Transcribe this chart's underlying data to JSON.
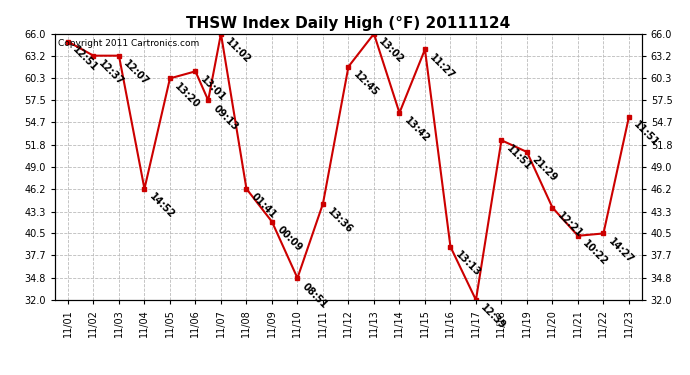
{
  "title": "THSW Index Daily High (°F) 20111124",
  "copyright": "Copyright 2011 Cartronics.com",
  "x_ticks": [
    "11/01",
    "11/02",
    "11/03",
    "11/04",
    "11/05",
    "11/06",
    "11/07",
    "11/08",
    "11/09",
    "11/10",
    "11/11",
    "11/12",
    "11/13",
    "11/14",
    "11/15",
    "11/16",
    "11/17",
    "11/18",
    "11/19",
    "11/20",
    "11/21",
    "11/22",
    "11/23"
  ],
  "x_values": [
    0,
    1,
    2,
    3,
    4,
    5,
    5.5,
    6,
    7,
    8,
    9,
    10,
    11,
    12,
    13,
    14,
    15,
    16,
    17,
    18,
    19,
    20,
    21,
    22
  ],
  "y_values": [
    65.0,
    63.2,
    63.2,
    46.2,
    60.3,
    61.2,
    57.5,
    66.0,
    46.2,
    42.0,
    34.8,
    44.3,
    61.8,
    66.0,
    55.9,
    64.0,
    38.8,
    32.0,
    52.4,
    50.9,
    43.8,
    40.2,
    40.5,
    55.4
  ],
  "point_labels": [
    "12:51",
    "12:37",
    "12:07",
    "14:52",
    "13:20",
    "13:01",
    "09:13",
    "11:02",
    "01:41",
    "00:09",
    "08:51",
    "13:36",
    "12:45",
    "13:02",
    "13:42",
    "11:27",
    "13:13",
    "12:39",
    "11:51",
    "21:29",
    "12:21",
    "10:22",
    "14:27",
    "11:51"
  ],
  "ylim": [
    32.0,
    66.0
  ],
  "yticks": [
    32.0,
    34.8,
    37.7,
    40.5,
    43.3,
    46.2,
    49.0,
    51.8,
    54.7,
    57.5,
    60.3,
    63.2,
    66.0
  ],
  "line_color": "#cc0000",
  "marker_color": "#cc0000",
  "bg_color": "#ffffff",
  "grid_color": "#bbbbbb",
  "title_fontsize": 11,
  "label_fontsize": 7,
  "tick_fontsize": 7,
  "copyright_fontsize": 6.5
}
